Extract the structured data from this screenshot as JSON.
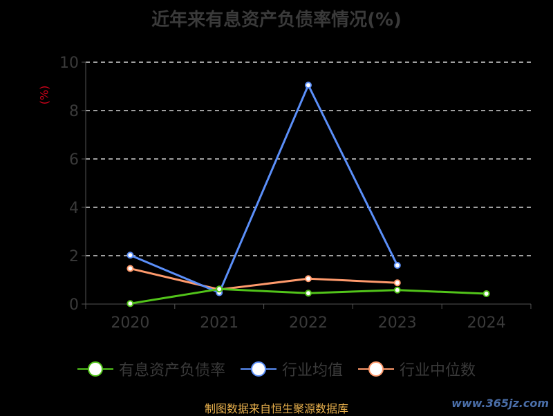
{
  "chart_data": {
    "type": "line",
    "title": "近年来有息资产负债率情况(%)",
    "ylabel": "(%)",
    "xlabel": "",
    "categories": [
      "2020",
      "2021",
      "2022",
      "2023",
      "2024"
    ],
    "ylim": [
      0,
      10
    ],
    "yticks": [
      0,
      2,
      4,
      6,
      8,
      10
    ],
    "grid": "horizontal-dashed",
    "legend_position": "bottom",
    "series": [
      {
        "name": "有息资产负债率",
        "color": "#52c41a",
        "values": [
          0.02,
          0.62,
          0.45,
          0.58,
          0.43
        ]
      },
      {
        "name": "行业均值",
        "color": "#5b8ff9",
        "values": [
          2.02,
          0.47,
          9.05,
          1.6,
          null
        ]
      },
      {
        "name": "行业中位数",
        "color": "#ff9a6c",
        "values": [
          1.47,
          0.6,
          1.05,
          0.88,
          null
        ]
      }
    ]
  },
  "footer": {
    "source": "制图数据来自恒生聚源数据库",
    "watermark": "www.365jz.com"
  }
}
